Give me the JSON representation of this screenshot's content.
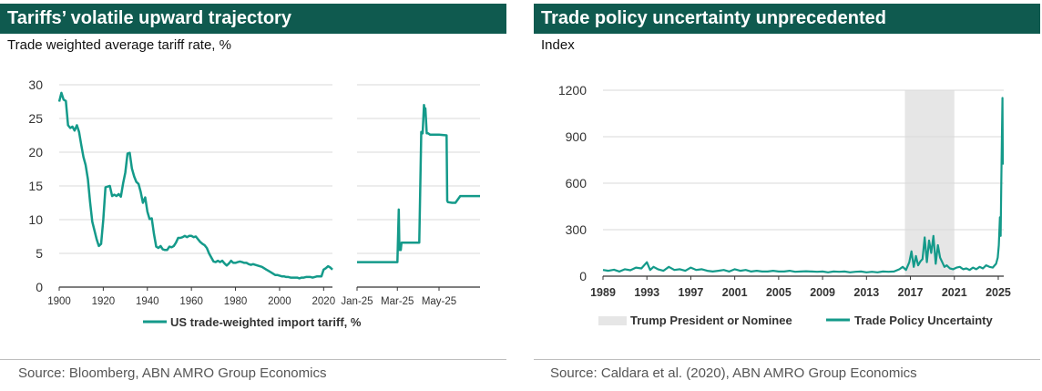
{
  "charts": [
    {
      "title": "Tariffs’ volatile upward trajectory",
      "subtitle": "Trade weighted average tariff rate, %",
      "source": "Source: Bloomberg, ABN AMRO Group Economics",
      "legend": [
        "US trade-weighted import tariff, %"
      ]
    },
    {
      "title": "Trade policy uncertainty unprecedented",
      "subtitle": "Index",
      "source": "Source: Caldara et al. (2020), ABN AMRO Group Economics",
      "legend": [
        "Trump President or Nominee",
        "Trade Policy Uncertainty"
      ]
    }
  ],
  "colors": {
    "accent": "#149a8a",
    "header": "#0f5a4f",
    "shade": "#e6e6e6"
  },
  "chart_data": [
    {
      "type": "line",
      "title": "Tariffs’ volatile upward trajectory",
      "ylabel": "Trade weighted average tariff rate, %",
      "ylim": [
        0,
        30
      ],
      "y_ticks": [
        0,
        5,
        10,
        15,
        20,
        25,
        30
      ],
      "series": [
        {
          "name": "US trade-weighted import tariff, %",
          "panel": "long-run",
          "x_ticks": [
            "1900",
            "1920",
            "1940",
            "1960",
            "1980",
            "2000",
            "2020"
          ],
          "xlim": [
            1900,
            2024
          ],
          "x": [
            1900,
            1901,
            1902,
            1903,
            1904,
            1905,
            1906,
            1907,
            1908,
            1909,
            1910,
            1911,
            1912,
            1913,
            1914,
            1915,
            1916,
            1917,
            1918,
            1919,
            1920,
            1921,
            1922,
            1923,
            1924,
            1925,
            1926,
            1927,
            1928,
            1929,
            1930,
            1931,
            1932,
            1933,
            1934,
            1935,
            1936,
            1937,
            1938,
            1939,
            1940,
            1941,
            1942,
            1943,
            1944,
            1945,
            1946,
            1947,
            1948,
            1949,
            1950,
            1951,
            1952,
            1953,
            1954,
            1955,
            1956,
            1957,
            1958,
            1959,
            1960,
            1961,
            1962,
            1963,
            1964,
            1965,
            1966,
            1967,
            1968,
            1969,
            1970,
            1971,
            1972,
            1973,
            1974,
            1975,
            1976,
            1977,
            1978,
            1979,
            1980,
            1981,
            1982,
            1983,
            1984,
            1985,
            1986,
            1987,
            1988,
            1989,
            1990,
            1991,
            1992,
            1993,
            1994,
            1995,
            1996,
            1997,
            1998,
            1999,
            2000,
            2001,
            2002,
            2003,
            2004,
            2005,
            2006,
            2007,
            2008,
            2009,
            2010,
            2011,
            2012,
            2013,
            2014,
            2015,
            2016,
            2017,
            2018,
            2019,
            2020,
            2021,
            2022,
            2023,
            2024
          ],
          "values": [
            27.5,
            28.8,
            27.8,
            27.6,
            24.0,
            23.6,
            23.8,
            23.2,
            24.0,
            23.0,
            21.1,
            19.3,
            18.1,
            16.0,
            12.6,
            9.7,
            8.4,
            7.1,
            6.1,
            6.4,
            10.0,
            14.8,
            14.9,
            15.0,
            13.5,
            13.7,
            13.5,
            13.8,
            13.4,
            15.4,
            17.0,
            19.8,
            19.9,
            17.6,
            16.4,
            15.6,
            15.3,
            14.1,
            12.5,
            13.3,
            11.2,
            10.1,
            10.2,
            7.9,
            6.0,
            5.8,
            6.1,
            5.6,
            5.5,
            5.5,
            6.0,
            5.9,
            6.1,
            6.6,
            7.3,
            7.3,
            7.4,
            7.6,
            7.4,
            7.6,
            7.6,
            7.4,
            7.5,
            7.1,
            6.7,
            6.4,
            6.2,
            5.8,
            5.0,
            4.4,
            3.8,
            3.7,
            3.9,
            3.7,
            3.9,
            3.5,
            3.2,
            3.5,
            3.9,
            3.6,
            3.6,
            3.7,
            3.8,
            3.7,
            3.6,
            3.6,
            3.4,
            3.3,
            3.4,
            3.3,
            3.2,
            3.1,
            3.0,
            2.8,
            2.6,
            2.4,
            2.2,
            2.0,
            1.8,
            1.8,
            1.7,
            1.6,
            1.6,
            1.5,
            1.5,
            1.4,
            1.4,
            1.4,
            1.4,
            1.3,
            1.4,
            1.4,
            1.5,
            1.5,
            1.5,
            1.4,
            1.5,
            1.6,
            1.6,
            1.6,
            2.6,
            2.8,
            3.1,
            2.9,
            2.6
          ]
        },
        {
          "name": "US trade-weighted import tariff, %",
          "panel": "2025",
          "x_ticks": [
            "Jan-25",
            "Mar-25",
            "May-25"
          ],
          "x": [
            "2025-01-01",
            "2025-02-15",
            "2025-03-01",
            "2025-03-03",
            "2025-03-04",
            "2025-03-05",
            "2025-03-06",
            "2025-03-07",
            "2025-03-12",
            "2025-04-02",
            "2025-04-05",
            "2025-04-07",
            "2025-04-09",
            "2025-04-10",
            "2025-04-11",
            "2025-04-13",
            "2025-04-15",
            "2025-04-18",
            "2025-04-25",
            "2025-05-01",
            "2025-05-12",
            "2025-05-13",
            "2025-05-14",
            "2025-05-20",
            "2025-05-25",
            "2025-06-01",
            "2025-06-10",
            "2025-06-30"
          ],
          "values": [
            3.7,
            3.7,
            3.7,
            11.5,
            5.5,
            5.6,
            5.5,
            6.6,
            6.6,
            6.6,
            23.0,
            22.8,
            27.0,
            26.0,
            26.5,
            22.8,
            22.8,
            22.6,
            22.6,
            22.6,
            22.5,
            12.8,
            12.6,
            12.5,
            12.5,
            13.5,
            13.5,
            13.5
          ]
        }
      ]
    },
    {
      "type": "line",
      "title": "Trade policy uncertainty unprecedented",
      "ylabel": "Index",
      "ylim": [
        0,
        1200
      ],
      "y_ticks": [
        0,
        300,
        600,
        900,
        1200
      ],
      "x_ticks": [
        "1989",
        "1993",
        "1997",
        "2001",
        "2005",
        "2009",
        "2013",
        "2017",
        "2021",
        "2025"
      ],
      "xlim": [
        1989,
        2025.5
      ],
      "shaded_regions": [
        {
          "name": "Trump President or Nominee",
          "from": 2016.5,
          "to": 2021.0
        }
      ],
      "series": [
        {
          "name": "Trade Policy Uncertainty",
          "x": [
            1989.0,
            1989.5,
            1990.0,
            1990.5,
            1991.0,
            1991.5,
            1992.0,
            1992.5,
            1993.0,
            1993.3,
            1993.6,
            1994.0,
            1994.5,
            1995.0,
            1995.5,
            1996.0,
            1996.5,
            1997.0,
            1997.5,
            1998.0,
            1998.5,
            1999.0,
            1999.5,
            2000.0,
            2000.5,
            2001.0,
            2001.5,
            2002.0,
            2002.5,
            2003.0,
            2003.5,
            2004.0,
            2004.5,
            2005.0,
            2005.5,
            2006.0,
            2006.5,
            2007.0,
            2007.5,
            2008.0,
            2008.5,
            2009.0,
            2009.5,
            2010.0,
            2010.5,
            2011.0,
            2011.5,
            2012.0,
            2012.5,
            2013.0,
            2013.5,
            2014.0,
            2014.5,
            2015.0,
            2015.5,
            2016.0,
            2016.3,
            2016.6,
            2016.9,
            2017.1,
            2017.3,
            2017.5,
            2017.7,
            2017.9,
            2018.1,
            2018.3,
            2018.5,
            2018.7,
            2018.9,
            2019.1,
            2019.3,
            2019.5,
            2019.7,
            2019.9,
            2020.1,
            2020.3,
            2020.6,
            2020.9,
            2021.2,
            2021.5,
            2021.8,
            2022.1,
            2022.4,
            2022.7,
            2023.0,
            2023.3,
            2023.6,
            2023.9,
            2024.2,
            2024.5,
            2024.8,
            2024.95,
            2025.05,
            2025.15,
            2025.22,
            2025.28,
            2025.33,
            2025.38,
            2025.42
          ],
          "values": [
            40,
            35,
            42,
            30,
            45,
            38,
            55,
            50,
            90,
            40,
            60,
            45,
            35,
            60,
            40,
            45,
            35,
            55,
            40,
            45,
            35,
            30,
            35,
            40,
            30,
            45,
            35,
            40,
            30,
            35,
            30,
            30,
            35,
            30,
            30,
            35,
            28,
            30,
            32,
            30,
            28,
            30,
            25,
            30,
            28,
            30,
            25,
            28,
            30,
            25,
            28,
            25,
            30,
            28,
            30,
            45,
            60,
            40,
            90,
            160,
            60,
            130,
            70,
            95,
            110,
            250,
            90,
            230,
            150,
            260,
            80,
            200,
            120,
            90,
            60,
            70,
            50,
            45,
            55,
            60,
            45,
            50,
            40,
            55,
            45,
            60,
            50,
            70,
            60,
            55,
            80,
            120,
            200,
            380,
            260,
            600,
            900,
            1150,
            720
          ]
        }
      ]
    }
  ]
}
